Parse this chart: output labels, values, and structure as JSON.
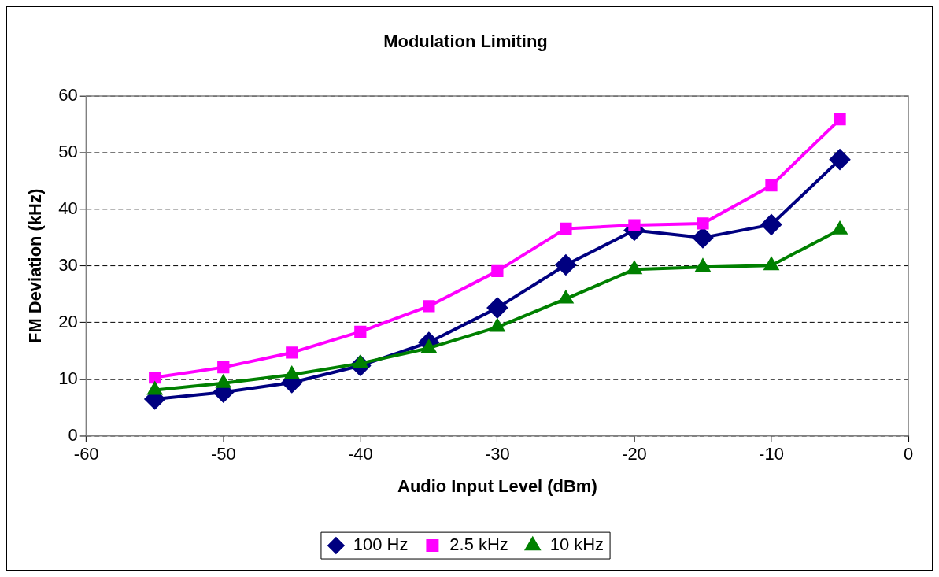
{
  "chart_data": {
    "type": "line",
    "title": "Modulation Limiting",
    "xlabel": "Audio Input Level (dBm)",
    "ylabel": "FM Deviation (kHz)",
    "x": [
      -55,
      -50,
      -45,
      -40,
      -35,
      -30,
      -25,
      -20,
      -15,
      -10,
      -5
    ],
    "series": [
      {
        "name": "100 Hz",
        "color": "#000080",
        "marker": "diamond",
        "values": [
          6.5,
          7.7,
          9.4,
          12.4,
          16.5,
          22.6,
          30.2,
          36.3,
          35.0,
          37.3,
          48.8
        ]
      },
      {
        "name": "2.5 kHz",
        "color": "#ff00ff",
        "marker": "square",
        "values": [
          10.3,
          12.1,
          14.7,
          18.4,
          22.9,
          29.1,
          36.6,
          37.2,
          37.5,
          44.2,
          55.9
        ]
      },
      {
        "name": "10 kHz",
        "color": "#008000",
        "marker": "triangle",
        "values": [
          8.1,
          9.3,
          10.8,
          12.8,
          15.5,
          19.2,
          24.2,
          29.4,
          29.8,
          30.1,
          36.4
        ]
      }
    ],
    "xlim": [
      -60,
      0
    ],
    "xticks": [
      -60,
      -50,
      -40,
      -30,
      -20,
      -10,
      0
    ],
    "ylim": [
      0,
      60
    ],
    "yticks": [
      0,
      10,
      20,
      30,
      40,
      50,
      60
    ],
    "grid": "y",
    "legend": "bottom",
    "line_style": "solid"
  }
}
